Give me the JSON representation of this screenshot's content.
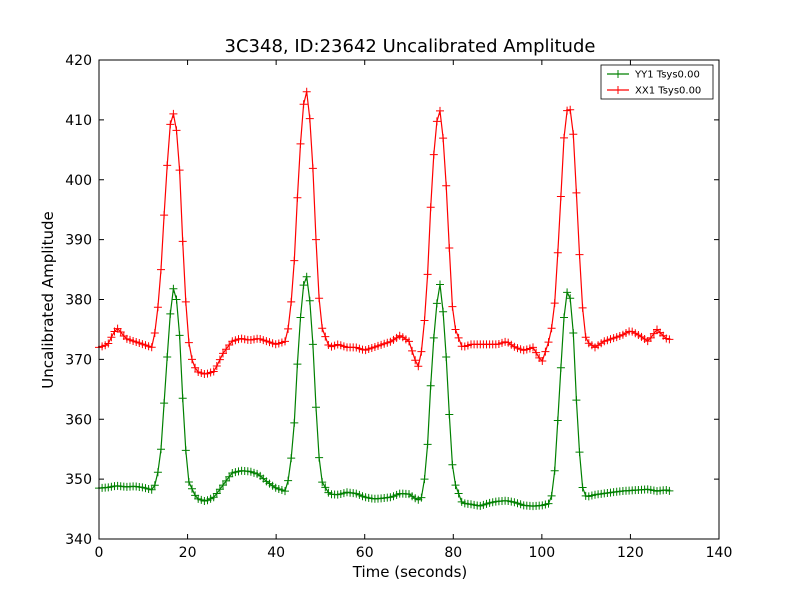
{
  "chart_data": {
    "type": "line",
    "title": "3C348, ID:23642 Uncalibrated Amplitude",
    "xlabel": "Time (seconds)",
    "ylabel": "Uncalibrated Amplitude",
    "xlim": [
      0,
      140
    ],
    "ylim": [
      340,
      420
    ],
    "xticks": [
      0,
      20,
      40,
      60,
      80,
      100,
      120,
      140
    ],
    "yticks": [
      340,
      350,
      360,
      370,
      380,
      390,
      400,
      410,
      420
    ],
    "grid": false,
    "legend_position": "top-right",
    "series": [
      {
        "name": "YY1 Tsys0.00",
        "color": "#008000",
        "x": [
          0,
          2,
          4,
          6,
          8,
          10,
          12,
          13,
          14,
          15,
          16,
          17,
          18,
          19,
          20,
          22,
          24,
          26,
          28,
          30,
          32,
          34,
          36,
          38,
          40,
          42,
          43,
          44,
          45,
          46,
          47,
          48,
          49,
          50,
          52,
          54,
          56,
          58,
          60,
          62,
          64,
          66,
          68,
          70,
          72,
          73,
          74,
          75,
          76,
          77,
          78,
          79,
          80,
          82,
          84,
          86,
          88,
          90,
          92,
          94,
          96,
          98,
          100,
          102,
          103,
          104,
          105,
          106,
          107,
          108,
          109,
          110,
          112,
          114,
          116,
          118,
          120,
          122,
          124,
          126,
          128,
          129
        ],
        "y": [
          348.5,
          348.6,
          348.9,
          348.7,
          348.8,
          348.6,
          348.2,
          349.5,
          355,
          366,
          377,
          383,
          377,
          362,
          350,
          346.8,
          346.3,
          347,
          349,
          351,
          351.4,
          351.3,
          350.8,
          349.5,
          348.5,
          348,
          350.5,
          358,
          372,
          382,
          384,
          377,
          362,
          350,
          347.5,
          347.4,
          347.8,
          347.6,
          347,
          346.7,
          346.8,
          347,
          347.6,
          347.5,
          346.5,
          347,
          353,
          367,
          378,
          382.5,
          376,
          362,
          350,
          346,
          345.8,
          345.5,
          346,
          346.3,
          346.4,
          346.1,
          345.6,
          345.5,
          345.6,
          346,
          352,
          365,
          377,
          383,
          376,
          360,
          349,
          347,
          347.4,
          347.6,
          347.8,
          348,
          348.1,
          348.2,
          348.3,
          348,
          348.2,
          348
        ]
      },
      {
        "name": "XX1 Tsys0.00",
        "color": "#ff0000",
        "x": [
          0,
          2,
          3,
          4,
          5,
          6,
          8,
          10,
          12,
          13,
          14,
          15,
          16,
          17,
          18,
          19,
          20,
          21,
          22,
          24,
          26,
          28,
          30,
          32,
          34,
          36,
          38,
          40,
          42,
          43,
          44,
          45,
          46,
          47,
          48,
          49,
          50,
          52,
          54,
          56,
          58,
          60,
          62,
          64,
          66,
          68,
          70,
          72,
          73,
          74,
          75,
          76,
          77,
          78,
          79,
          80,
          82,
          84,
          86,
          88,
          90,
          92,
          94,
          96,
          98,
          100,
          102,
          103,
          104,
          105,
          106,
          107,
          108,
          109,
          110,
          112,
          114,
          116,
          118,
          120,
          122,
          124,
          126,
          128,
          129
        ],
        "y": [
          372,
          372.5,
          374,
          375.3,
          374.5,
          373.5,
          373,
          372.5,
          372,
          376,
          385,
          398,
          409,
          411.5,
          405,
          388,
          374,
          370,
          368,
          367.5,
          368,
          371,
          373,
          373.5,
          373.2,
          373.5,
          373,
          372.5,
          373,
          376,
          385,
          400,
          412,
          415,
          407,
          390,
          376,
          372,
          372.5,
          372,
          372,
          371.5,
          372,
          372.5,
          373,
          374,
          373,
          368.5,
          372,
          381,
          397,
          409,
          411.5,
          405,
          390,
          376,
          372,
          372.5,
          372.5,
          372.5,
          372.5,
          373,
          372,
          371.5,
          372,
          369.5,
          374,
          380,
          393,
          407,
          413.5,
          409,
          395,
          380,
          373,
          372,
          373,
          373.5,
          374,
          374.8,
          374,
          373,
          375,
          373.5,
          373.3
        ]
      }
    ]
  }
}
